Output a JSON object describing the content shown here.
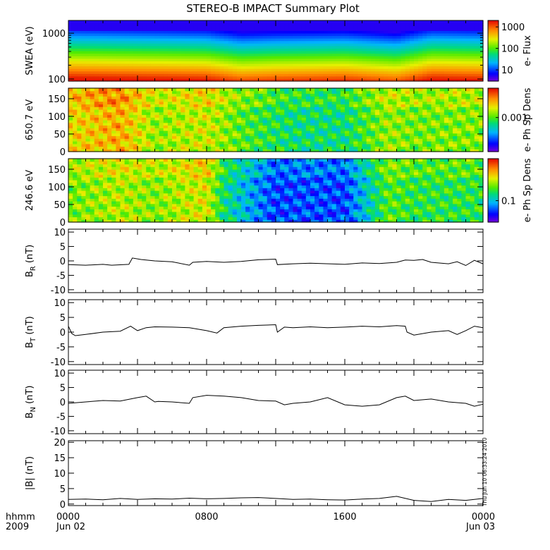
{
  "title": "STEREO-B IMPACT Summary Plot",
  "stamp": "Thu Jun 10 06:33:24 2010",
  "x_axis": {
    "corner_top": "hhmm",
    "corner_bottom": "2009",
    "ticks": [
      {
        "t": 0,
        "top": "0000",
        "bottom": "Jun 02"
      },
      {
        "t": 8,
        "top": "0800",
        "bottom": ""
      },
      {
        "t": 16,
        "top": "1600",
        "bottom": ""
      },
      {
        "t": 24,
        "top": "0000",
        "bottom": "Jun 03"
      }
    ]
  },
  "colors": {
    "line": "#000000",
    "background": "#ffffff"
  },
  "chart_data": [
    {
      "type": "heatmap",
      "ylabel": "SWEA (eV)",
      "y_scale": "log",
      "ylim": [
        90,
        1900
      ],
      "yticks": [
        {
          "v": 100,
          "label": "100"
        },
        {
          "v": 1000,
          "label": "1000"
        }
      ],
      "colorbar": {
        "label": "e- Flux",
        "scale": "log",
        "range": [
          3,
          2000
        ],
        "ticks": [
          {
            "v": 10,
            "label": "10"
          },
          {
            "v": 100,
            "label": "100"
          },
          {
            "v": 1000,
            "label": "1000"
          }
        ]
      },
      "time_hours": [
        0,
        4,
        8,
        10,
        12,
        16,
        19,
        21,
        24
      ],
      "flux_level": [
        1.0,
        0.95,
        0.9,
        0.7,
        0.75,
        0.8,
        0.65,
        0.95,
        0.9
      ]
    },
    {
      "type": "heatmap",
      "ylabel": "650.7 eV",
      "ylim": [
        0,
        180
      ],
      "yticks": [
        {
          "v": 0,
          "label": "0"
        },
        {
          "v": 50,
          "label": "50"
        },
        {
          "v": 100,
          "label": "100"
        },
        {
          "v": 150,
          "label": "150"
        }
      ],
      "colorbar": {
        "label": "e- Ph Sp Dens",
        "scale": "log",
        "range": [
          0.0002,
          0.004
        ],
        "ticks": [
          {
            "v": 0.001,
            "label": "0.001"
          }
        ]
      },
      "time_hours": [
        0,
        3,
        5,
        8,
        10,
        13,
        16,
        18.5,
        20,
        24
      ],
      "level": [
        0.72,
        0.8,
        0.62,
        0.68,
        0.55,
        0.45,
        0.45,
        0.62,
        0.58,
        0.6
      ]
    },
    {
      "type": "heatmap",
      "ylabel": "246.6 eV",
      "ylim": [
        0,
        180
      ],
      "yticks": [
        {
          "v": 0,
          "label": "0"
        },
        {
          "v": 50,
          "label": "50"
        },
        {
          "v": 100,
          "label": "100"
        },
        {
          "v": 150,
          "label": "150"
        }
      ],
      "colorbar": {
        "label": "e- Ph Sp Dens",
        "scale": "log",
        "range": [
          0.04,
          0.6
        ],
        "ticks": [
          {
            "v": 0.1,
            "label": "0.1"
          }
        ]
      },
      "time_hours": [
        0,
        3,
        5,
        8,
        9,
        10,
        12,
        14,
        16,
        18.5,
        20,
        24
      ],
      "level": [
        0.58,
        0.65,
        0.6,
        0.7,
        0.45,
        0.35,
        0.18,
        0.2,
        0.18,
        0.55,
        0.5,
        0.5
      ]
    },
    {
      "type": "line",
      "ylabel_main": "B",
      "ylabel_sub": "R",
      "ylabel_unit": " (nT)",
      "ylim": [
        -11,
        11
      ],
      "yticks": [
        {
          "v": -10,
          "label": "-10"
        },
        {
          "v": -5,
          "label": "-5"
        },
        {
          "v": 0,
          "label": "0"
        },
        {
          "v": 5,
          "label": "5"
        },
        {
          "v": 10,
          "label": "10"
        }
      ],
      "x": [
        0,
        1,
        2,
        2.5,
        3.5,
        3.7,
        4.2,
        5,
        6,
        7,
        7.2,
        8,
        9,
        10,
        11,
        12,
        12.1,
        13,
        14,
        16,
        17,
        18,
        19,
        19.5,
        20,
        20.5,
        21,
        22,
        22.5,
        23,
        23.5,
        24
      ],
      "y": [
        -1.3,
        -1.5,
        -1.2,
        -1.5,
        -1.2,
        1.0,
        0.5,
        0.0,
        -0.3,
        -1.5,
        -0.5,
        -0.2,
        -0.5,
        -0.2,
        0.4,
        0.6,
        -1.3,
        -1.0,
        -0.8,
        -1.2,
        -0.7,
        -0.9,
        -0.5,
        0.3,
        0.2,
        0.5,
        -0.5,
        -1.0,
        -0.3,
        -1.6,
        0.2,
        -1.0
      ]
    },
    {
      "type": "line",
      "ylabel_main": "B",
      "ylabel_sub": "T",
      "ylabel_unit": " (nT)",
      "ylim": [
        -11,
        11
      ],
      "yticks": [
        {
          "v": -10,
          "label": "-10"
        },
        {
          "v": -5,
          "label": "-5"
        },
        {
          "v": 0,
          "label": "0"
        },
        {
          "v": 5,
          "label": "5"
        },
        {
          "v": 10,
          "label": "10"
        }
      ],
      "x": [
        0,
        0.2,
        0.4,
        1,
        2,
        3,
        3.6,
        4,
        4.5,
        5,
        6,
        7,
        8,
        8.6,
        9,
        10,
        11,
        12,
        12.1,
        12.5,
        13,
        14,
        15,
        16,
        17,
        18,
        19,
        19.5,
        19.6,
        20,
        21,
        22,
        22.5,
        23,
        23.5,
        24
      ],
      "y": [
        2.0,
        -0.5,
        -1.2,
        -0.8,
        0.0,
        0.3,
        2.0,
        0.5,
        1.5,
        1.8,
        1.7,
        1.5,
        0.5,
        -0.3,
        1.5,
        2.0,
        2.3,
        2.5,
        0.0,
        1.7,
        1.5,
        1.8,
        1.5,
        1.7,
        2.0,
        1.8,
        2.2,
        2.0,
        0.0,
        -1.0,
        0.0,
        0.5,
        -0.8,
        0.5,
        2.0,
        1.5
      ]
    },
    {
      "type": "line",
      "ylabel_main": "B",
      "ylabel_sub": "N",
      "ylabel_unit": " (nT)",
      "ylim": [
        -11,
        11
      ],
      "yticks": [
        {
          "v": -10,
          "label": "-10"
        },
        {
          "v": -5,
          "label": "-5"
        },
        {
          "v": 0,
          "label": "0"
        },
        {
          "v": 5,
          "label": "5"
        },
        {
          "v": 10,
          "label": "10"
        }
      ],
      "x": [
        0,
        1,
        2,
        3,
        4,
        4.5,
        5,
        5.2,
        6,
        7,
        7.2,
        8,
        9,
        10,
        11,
        12,
        12.5,
        13,
        14,
        15,
        16,
        17,
        18,
        19,
        19.5,
        20,
        21,
        22,
        23,
        23.5,
        24
      ],
      "y": [
        -0.5,
        0.0,
        0.5,
        0.3,
        1.5,
        2.0,
        0.0,
        0.2,
        0.0,
        -0.5,
        1.5,
        2.3,
        2.0,
        1.5,
        0.5,
        0.3,
        -1.0,
        -0.5,
        0.0,
        1.5,
        -1.0,
        -1.5,
        -1.0,
        1.5,
        2.0,
        0.5,
        1.0,
        0.0,
        -0.5,
        -1.5,
        -0.8
      ]
    },
    {
      "type": "line",
      "ylabel_main": "|B| (nT)",
      "ylim": [
        -0.5,
        20.5
      ],
      "yticks": [
        {
          "v": 0,
          "label": "0"
        },
        {
          "v": 5,
          "label": "5"
        },
        {
          "v": 10,
          "label": "10"
        },
        {
          "v": 15,
          "label": "15"
        },
        {
          "v": 20,
          "label": "20"
        }
      ],
      "x": [
        0,
        1,
        2,
        3,
        4,
        5,
        6,
        7,
        8,
        9,
        10,
        11,
        12,
        13,
        14,
        15,
        16,
        17,
        18,
        19,
        20,
        21,
        22,
        23,
        24
      ],
      "y": [
        1.5,
        1.6,
        1.4,
        1.8,
        1.5,
        1.7,
        1.6,
        1.9,
        1.7,
        1.8,
        2.0,
        2.1,
        1.8,
        1.5,
        1.6,
        1.4,
        1.3,
        1.6,
        1.8,
        2.5,
        1.2,
        0.8,
        1.5,
        1.2,
        1.8
      ]
    }
  ]
}
